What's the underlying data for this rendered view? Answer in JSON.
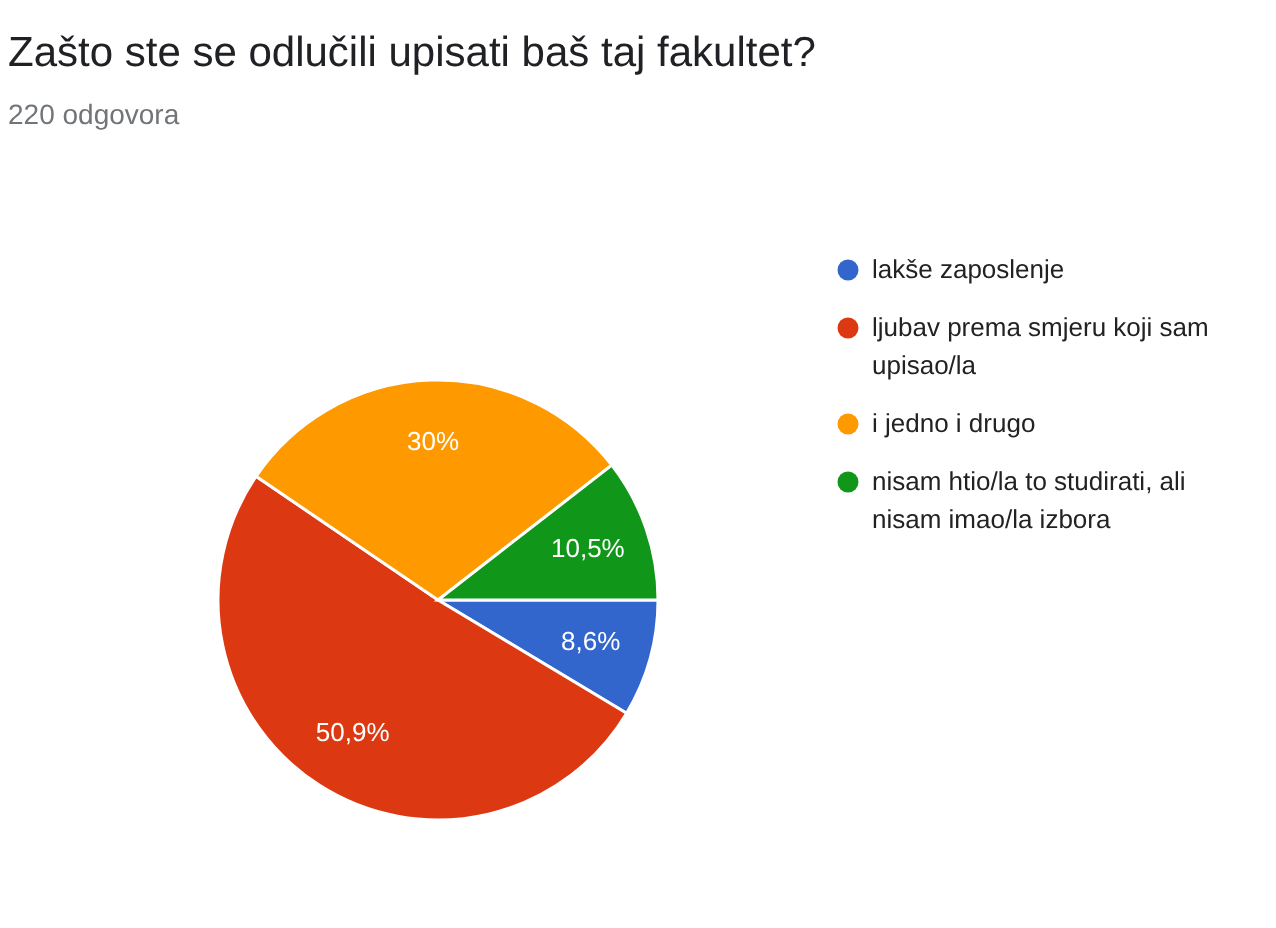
{
  "chart_data": {
    "type": "pie",
    "title": "Zašto ste se odlučili upisati baš taj fakultet?",
    "subtitle": "220 odgovora",
    "categories": [
      "lakše zaposlenje",
      "ljubav prema smjeru koji sam upisao/la",
      "i jedno i drugo",
      "nisam htio/la to studirati, ali nisam imao/la izbora"
    ],
    "values": [
      8.6,
      50.9,
      30,
      10.5
    ],
    "value_labels": [
      "8,6%",
      "50,9%",
      "30%",
      "10,5%"
    ],
    "colors": [
      "#3366cc",
      "#dc3912",
      "#ff9900",
      "#109618"
    ],
    "legend": "right"
  }
}
